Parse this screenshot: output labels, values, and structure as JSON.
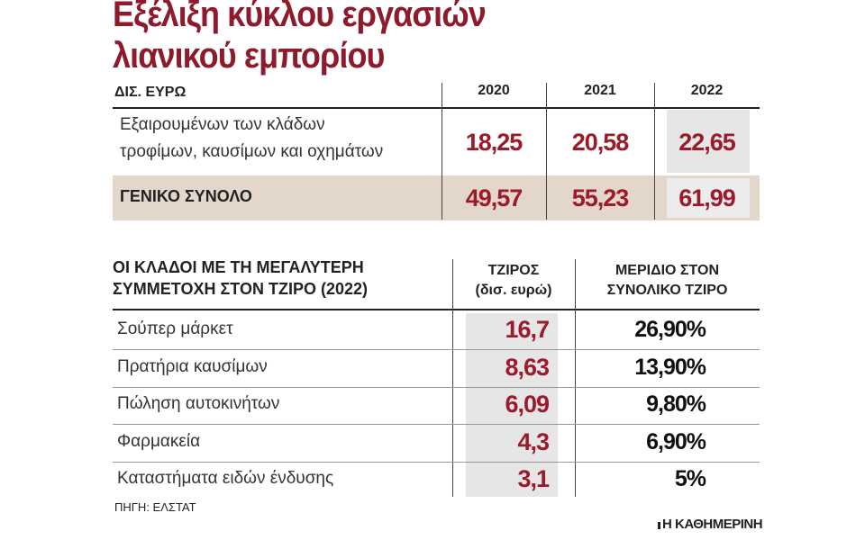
{
  "title": [
    "Εξέλιξη κύκλου εργασιών",
    "λιανικού εμπορίου"
  ],
  "table1": {
    "unit": "ΔΙΣ. ΕΥΡΩ",
    "columns": [
      "2020",
      "2021",
      "2022"
    ],
    "rows": [
      {
        "label": [
          "Εξαιρουμένων των κλάδων",
          "τροφίμων, καυσίμων και οχημάτων"
        ],
        "values": [
          "18,25",
          "20,58",
          "22,65"
        ]
      },
      {
        "label": [
          "ΓΕΝΙΚΟ ΣΥΝΟΛΟ"
        ],
        "values": [
          "49,57",
          "55,23",
          "61,99"
        ]
      }
    ]
  },
  "table2": {
    "heading": [
      "ΟΙ ΚΛΑΔΟΙ ΜΕ ΤΗ ΜΕΓΑΛΥΤΕΡΗ",
      "ΣΥΜΜΕΤΟΧΗ ΣΤΟΝ ΤΖΙΡΟ (2022)"
    ],
    "columns": [
      [
        "ΤΖΙΡΟΣ",
        "(δισ. ευρώ)"
      ],
      [
        "ΜΕΡΙΔΙΟ ΣΤΟΝ",
        "ΣΥΝΟΛΙΚΟ ΤΖΙΡΟ"
      ]
    ],
    "rows": [
      [
        "Σούπερ μάρκετ",
        "16,7",
        "26,90%"
      ],
      [
        "Πρατήρια καυσίμων",
        "8,63",
        "13,90%"
      ],
      [
        "Πώληση αυτοκινήτων",
        "6,09",
        "9,80%"
      ],
      [
        "Φαρμακεία",
        "4,3",
        "6,90%"
      ],
      [
        "Καταστήματα ειδών ένδυσης",
        "3,1",
        "5%"
      ]
    ]
  },
  "source": "ΠΗΓΗ: ΕΛΣΤΑΤ",
  "brand": "Η ΚΑΘΗΜΕΡΙΝΗ"
}
